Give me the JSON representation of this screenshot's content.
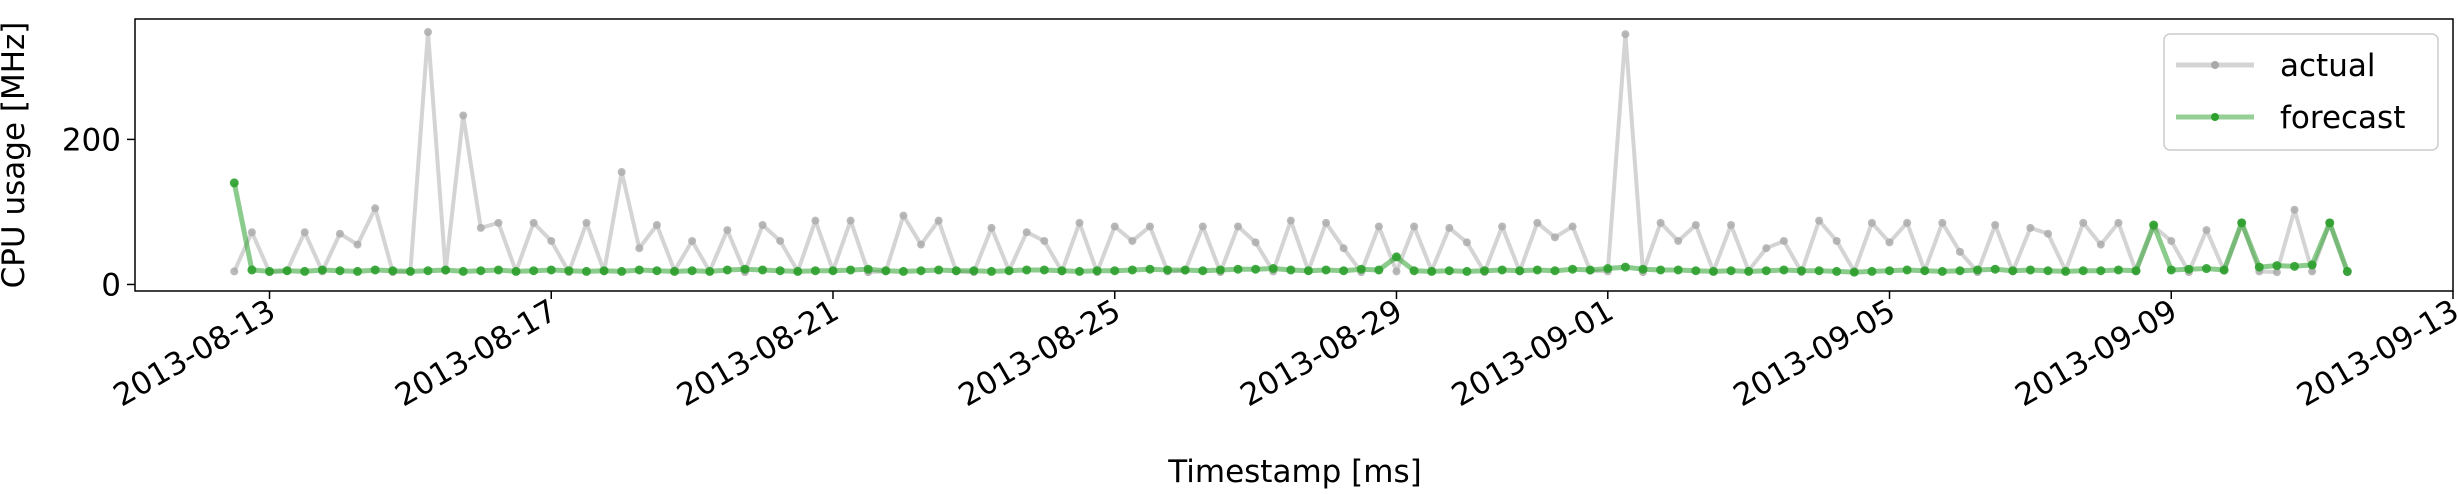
{
  "chart_data": {
    "type": "line",
    "xlabel": "Timestamp [ms]",
    "ylabel": "CPU usage [MHz]",
    "x": [
      1376308800000,
      1376330400000,
      1376352000000,
      1376373600000,
      1376395200000,
      1376416800000,
      1376438400000,
      1376460000000,
      1376481600000,
      1376503200000,
      1376524800000,
      1376546400000,
      1376568000000,
      1376589600000,
      1376611200000,
      1376632800000,
      1376654400000,
      1376676000000,
      1376697600000,
      1376719200000,
      1376740800000,
      1376762400000,
      1376784000000,
      1376805600000,
      1376827200000,
      1376848800000,
      1376870400000,
      1376892000000,
      1376913600000,
      1376935200000,
      1376956800000,
      1376978400000,
      1377000000000,
      1377021600000,
      1377043200000,
      1377064800000,
      1377086400000,
      1377108000000,
      1377129600000,
      1377151200000,
      1377172800000,
      1377194400000,
      1377216000000,
      1377237600000,
      1377259200000,
      1377280800000,
      1377302400000,
      1377324000000,
      1377345600000,
      1377367200000,
      1377388800000,
      1377410400000,
      1377432000000,
      1377453600000,
      1377475200000,
      1377496800000,
      1377518400000,
      1377540000000,
      1377561600000,
      1377583200000,
      1377604800000,
      1377626400000,
      1377648000000,
      1377669600000,
      1377691200000,
      1377712800000,
      1377734400000,
      1377756000000,
      1377777600000,
      1377799200000,
      1377820800000,
      1377842400000,
      1377864000000,
      1377885600000,
      1377907200000,
      1377928800000,
      1377950400000,
      1377972000000,
      1377993600000,
      1378015200000,
      1378036800000,
      1378058400000,
      1378080000000,
      1378101600000,
      1378123200000,
      1378144800000,
      1378166400000,
      1378188000000,
      1378209600000,
      1378231200000,
      1378252800000,
      1378274400000,
      1378296000000,
      1378317600000,
      1378339200000,
      1378360800000,
      1378382400000,
      1378404000000,
      1378425600000,
      1378447200000,
      1378468800000,
      1378490400000,
      1378512000000,
      1378533600000,
      1378555200000,
      1378576800000,
      1378598400000,
      1378620000000,
      1378641600000,
      1378663200000,
      1378684800000,
      1378706400000,
      1378728000000,
      1378749600000,
      1378771200000,
      1378792800000,
      1378814400000,
      1378836000000,
      1378857600000,
      1378879200000,
      1378900800000
    ],
    "series": [
      {
        "name": "actual",
        "color": "#a9a9a9",
        "values": [
          18,
          72,
          17,
          19,
          72,
          18,
          70,
          55,
          105,
          17,
          18,
          348,
          19,
          233,
          78,
          85,
          18,
          85,
          60,
          17,
          85,
          18,
          155,
          50,
          82,
          19,
          60,
          18,
          75,
          17,
          82,
          60,
          18,
          88,
          19,
          88,
          17,
          18,
          95,
          55,
          88,
          18,
          17,
          78,
          19,
          72,
          60,
          18,
          85,
          17,
          80,
          60,
          80,
          18,
          19,
          80,
          17,
          80,
          58,
          18,
          88,
          19,
          85,
          50,
          17,
          80,
          18,
          80,
          19,
          78,
          58,
          17,
          80,
          18,
          85,
          65,
          80,
          19,
          18,
          345,
          17,
          85,
          60,
          82,
          18,
          82,
          19,
          50,
          60,
          17,
          88,
          60,
          18,
          85,
          58,
          85,
          19,
          85,
          45,
          17,
          82,
          18,
          78,
          70,
          19,
          85,
          55,
          85,
          18,
          80,
          60,
          17,
          75,
          19,
          85,
          18,
          17,
          103,
          18,
          85,
          17
        ]
      },
      {
        "name": "forecast",
        "color": "#2ca02c",
        "values": [
          140,
          20,
          18,
          19,
          18,
          20,
          19,
          18,
          20,
          19,
          18,
          19,
          20,
          18,
          19,
          20,
          18,
          19,
          20,
          19,
          18,
          19,
          18,
          20,
          19,
          18,
          19,
          18,
          20,
          21,
          20,
          19,
          18,
          19,
          19,
          20,
          21,
          19,
          18,
          19,
          20,
          19,
          19,
          18,
          19,
          20,
          20,
          19,
          18,
          19,
          19,
          20,
          21,
          20,
          20,
          19,
          20,
          21,
          21,
          22,
          20,
          19,
          20,
          19,
          21,
          20,
          38,
          19,
          18,
          19,
          18,
          19,
          20,
          19,
          20,
          19,
          21,
          20,
          22,
          24,
          21,
          20,
          20,
          19,
          18,
          19,
          18,
          19,
          20,
          19,
          19,
          18,
          17,
          18,
          19,
          20,
          19,
          18,
          19,
          20,
          21,
          19,
          20,
          19,
          18,
          19,
          19,
          20,
          19,
          82,
          20,
          21,
          22,
          20,
          85,
          24,
          26,
          25,
          27,
          85,
          18
        ]
      }
    ],
    "xlim": [
      1376187000000,
      1379030400000
    ],
    "xticks": [
      {
        "value": 1376352000000,
        "label": "2013-08-13"
      },
      {
        "value": 1376697600000,
        "label": "2013-08-17"
      },
      {
        "value": 1377043200000,
        "label": "2013-08-21"
      },
      {
        "value": 1377388800000,
        "label": "2013-08-25"
      },
      {
        "value": 1377734400000,
        "label": "2013-08-29"
      },
      {
        "value": 1377993600000,
        "label": "2013-09-01"
      },
      {
        "value": 1378339200000,
        "label": "2013-09-05"
      },
      {
        "value": 1378684800000,
        "label": "2013-09-09"
      },
      {
        "value": 1379030400000,
        "label": "2013-09-13"
      }
    ],
    "ylim": [
      -9,
      366
    ],
    "yticks": [
      0,
      200
    ],
    "legend": "upper right"
  }
}
